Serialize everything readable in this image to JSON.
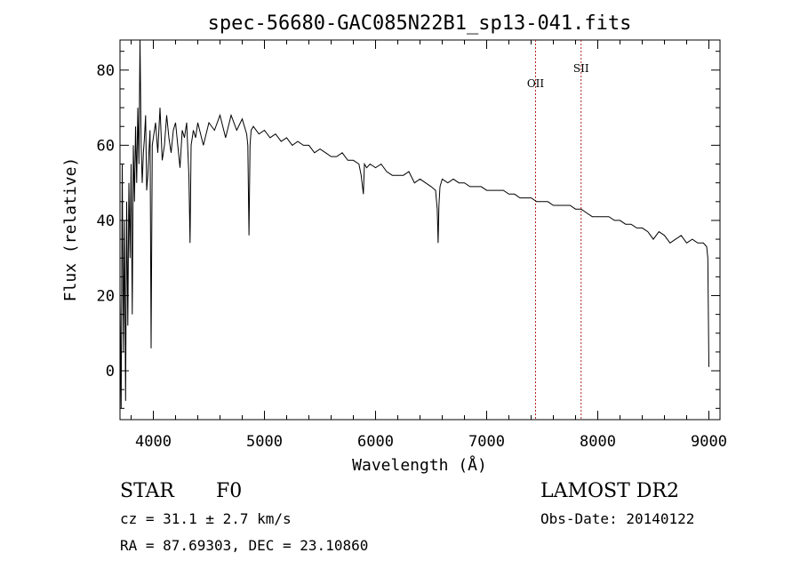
{
  "chart_data": {
    "type": "line",
    "title": "spec-56680-GAC085N22B1_sp13-041.fits",
    "xlabel": "Wavelength (Å)",
    "ylabel": "Flux (relative)",
    "xlim": [
      3700,
      9100
    ],
    "ylim": [
      -13,
      88
    ],
    "x_ticks": [
      4000,
      5000,
      6000,
      7000,
      8000,
      9000
    ],
    "y_ticks": [
      0,
      20,
      40,
      60,
      80
    ],
    "grid": false,
    "line_color": "#000000",
    "marker_color": "#b22222",
    "series": [
      {
        "x": [
          3700,
          3710,
          3720,
          3730,
          3740,
          3750,
          3760,
          3770,
          3780,
          3790,
          3800,
          3810,
          3820,
          3830,
          3840,
          3850,
          3860,
          3870,
          3880,
          3890,
          3900,
          3910,
          3920,
          3930,
          3940,
          3950,
          3960,
          3970,
          3980,
          3990,
          4000,
          4020,
          4040,
          4060,
          4080,
          4100,
          4120,
          4140,
          4160,
          4180,
          4200,
          4220,
          4240,
          4260,
          4280,
          4300,
          4320,
          4330,
          4340,
          4350,
          4360,
          4380,
          4400,
          4450,
          4500,
          4550,
          4600,
          4650,
          4700,
          4750,
          4800,
          4840,
          4850,
          4861,
          4870,
          4880,
          4900,
          4950,
          5000,
          5050,
          5100,
          5150,
          5200,
          5250,
          5300,
          5350,
          5400,
          5450,
          5500,
          5550,
          5600,
          5650,
          5700,
          5750,
          5800,
          5850,
          5870,
          5890,
          5900,
          5920,
          5950,
          6000,
          6050,
          6100,
          6150,
          6200,
          6250,
          6300,
          6350,
          6400,
          6450,
          6500,
          6540,
          6555,
          6563,
          6570,
          6580,
          6600,
          6650,
          6700,
          6750,
          6800,
          6850,
          6900,
          6950,
          7000,
          7050,
          7100,
          7150,
          7200,
          7250,
          7300,
          7350,
          7400,
          7450,
          7500,
          7550,
          7600,
          7650,
          7700,
          7750,
          7800,
          7850,
          7900,
          7950,
          8000,
          8050,
          8100,
          8150,
          8200,
          8250,
          8300,
          8350,
          8400,
          8450,
          8500,
          8550,
          8600,
          8650,
          8700,
          8750,
          8800,
          8850,
          8900,
          8950,
          8980,
          8990,
          9000
        ],
        "y": [
          20,
          -10,
          55,
          5,
          40,
          -8,
          45,
          12,
          50,
          30,
          55,
          15,
          60,
          45,
          65,
          50,
          70,
          55,
          88,
          60,
          50,
          58,
          62,
          68,
          48,
          52,
          58,
          64,
          6,
          60,
          62,
          66,
          58,
          70,
          56,
          60,
          68,
          62,
          58,
          64,
          66,
          60,
          54,
          64,
          62,
          66,
          52,
          34,
          60,
          62,
          64,
          62,
          66,
          60,
          66,
          64,
          68,
          62,
          68,
          64,
          67,
          63,
          60,
          36,
          60,
          64,
          65,
          63,
          64,
          62,
          63,
          61,
          62,
          60,
          61,
          60,
          60,
          58,
          59,
          58,
          57,
          57,
          58,
          56,
          56,
          55,
          52,
          47,
          55,
          54,
          55,
          54,
          55,
          53,
          52,
          52,
          52,
          53,
          50,
          51,
          50,
          49,
          48,
          43,
          34,
          44,
          49,
          51,
          50,
          51,
          50,
          50,
          49,
          49,
          49,
          48,
          48,
          48,
          48,
          47,
          47,
          46,
          46,
          46,
          45,
          45,
          45,
          44,
          44,
          44,
          44,
          43,
          43,
          42,
          41,
          41,
          41,
          41,
          40,
          40,
          39,
          39,
          38,
          38,
          37,
          35,
          37,
          36,
          34,
          35,
          36,
          34,
          35,
          34,
          34,
          33,
          30,
          1
        ]
      }
    ],
    "annotations": [
      {
        "label": "OII",
        "x": 7440,
        "y": 75.5
      },
      {
        "label": "SII",
        "x": 7850,
        "y": 79.5
      }
    ]
  },
  "info": {
    "object_class": "STAR",
    "subclass": "F0",
    "survey": "LAMOST DR2",
    "redshift_line": "cz = 31.1 ± 2.7 km/s",
    "obs_date_line": "Obs-Date: 20140122",
    "coords_line": "RA =  87.69303, DEC =  23.10860"
  }
}
